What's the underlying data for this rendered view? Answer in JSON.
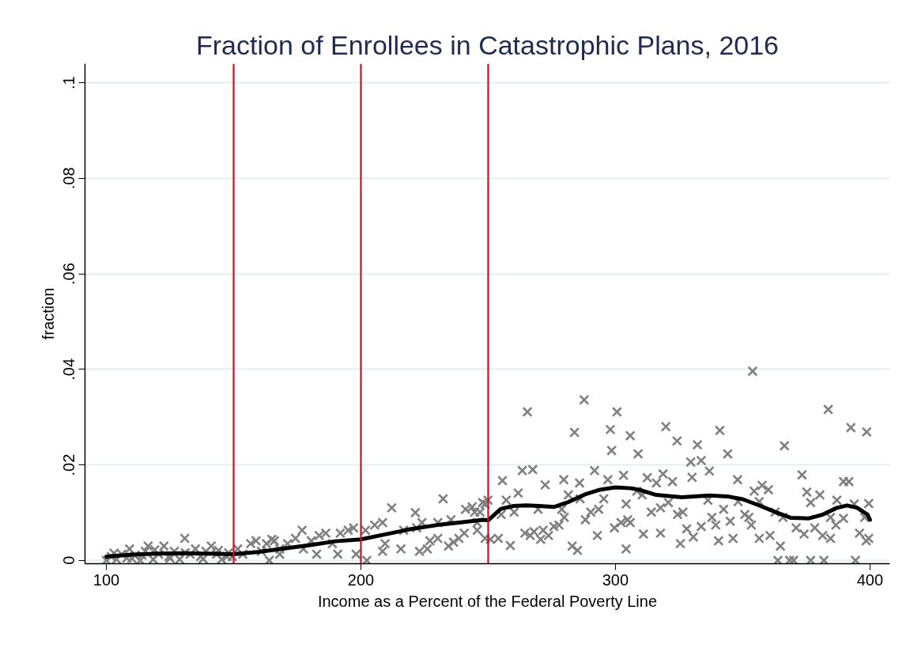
{
  "chart_data": {
    "type": "scatter",
    "title": "Fraction of Enrollees in Catastrophic Plans, 2016",
    "xlabel": "Income as a Percent of the Federal Poverty Line",
    "ylabel": "fraction",
    "series": [
      {
        "color": "#808080",
        "marker": "cross",
        "x": [
          100,
          101.9,
          104,
          106,
          108.1,
          109.1,
          111.2,
          113.3,
          115.3,
          116.4,
          118.4,
          120.5,
          122.6,
          124.6,
          126.7,
          128.8,
          130.8,
          132.9,
          135,
          137,
          139.1,
          141.2,
          143.3,
          145.3,
          147.4,
          149.5,
          151.6,
          153.6,
          156.7,
          158.8,
          160.9,
          162.9,
          164,
          166,
          168.1,
          103,
          110,
          114,
          119,
          125,
          131,
          138,
          144,
          148,
          165,
          168.1,
          171.2,
          174.3,
          176.9,
          177.4,
          180.5,
          183.6,
          182.6,
          186.2,
          188.8,
          190.9,
          191.9,
          195,
          197.1,
          198.1,
          201.8,
          202.3,
          205.4,
          208.5,
          208.5,
          209.5,
          212.1,
          215.7,
          216.8,
          221.4,
          221.9,
          224,
          223,
          226.1,
          230.2,
          227.1,
          230.2,
          232.3,
          234.4,
          236.4,
          235.4,
          238.5,
          240.6,
          241.1,
          243.7,
          245.7,
          247.8,
          249.9,
          245.7,
          248.8,
          244.7,
          265.4,
          287.7,
          300.6,
          283.9,
          298,
          298.5,
          305.8,
          263.4,
          267.5,
          255.6,
          272.4,
          279.7,
          285.9,
          291.8,
          297,
          303.2,
          261.8,
          257.1,
          248.8,
          281.5,
          286.1,
          295.4,
          304.2,
          269.6,
          260.2,
          255.1,
          246.8,
          278.9,
          290.3,
          293.4,
          279.9,
          288.2,
          299.6,
          304.8,
          264.4,
          268,
          271.6,
          275.8,
          277.8,
          270.6,
          273.7,
          266.5,
          292.9,
          250.9,
          254,
          258.7,
          283,
          285.1,
          304.2,
          353.9,
          319.8,
          341,
          324.2,
          332.2,
          308.9,
          344.1,
          329.6,
          333.7,
          336.9,
          312.5,
          318.7,
          322.4,
          316.1,
          330.1,
          348,
          354.5,
          308.4,
          310.5,
          314.1,
          317.7,
          320.8,
          326.5,
          336.3,
          342.5,
          348.2,
          350.8,
          352.4,
          302.2,
          305.8,
          324.4,
          328,
          333.7,
          337.9,
          339.4,
          345.1,
          311,
          317.7,
          330.6,
          325.5,
          340.5,
          346.2,
          353.4,
          383.6,
          392.5,
          398.7,
          366.4,
          373.3,
          389.6,
          391.7,
          357.6,
          360.1,
          375.2,
          380.3,
          376.7,
          387,
          399.5,
          356.5,
          362.7,
          365.8,
          356.5,
          360.7,
          364.8,
          371,
          374.1,
          378.3,
          381.4,
          384.5,
          386.6,
          389.6,
          384.5,
          395.9,
          398.5,
          399.5,
          397.9,
          393.8,
          363.8,
          368.4,
          370,
          376.7,
          381.9,
          394.3
        ],
        "values": [
          0,
          0.0008,
          0.0002,
          0.0013,
          0.0005,
          0.0024,
          0.001,
          0,
          0.0019,
          0.003,
          0.0002,
          0.0013,
          0.003,
          0.0008,
          0.0019,
          0.0002,
          0.0046,
          0.0013,
          0.0024,
          0.0008,
          0.0019,
          0.003,
          0.0013,
          0.0002,
          0.0008,
          0.0008,
          0.0024,
          0.0013,
          0.0035,
          0.0041,
          0.0019,
          0.0035,
          0,
          0.0041,
          0.0024,
          0.0015,
          0.0004,
          0.0011,
          0.0022,
          0.0004,
          0.0016,
          0.0003,
          0.0021,
          0.0016,
          0.0044,
          0.0013,
          0.0035,
          0.0046,
          0.0063,
          0.0024,
          0.0041,
          0.0052,
          0.0013,
          0.0057,
          0.0035,
          0.0013,
          0.0057,
          0.0063,
          0.0068,
          0.0013,
          0.0063,
          0,
          0.0074,
          0.0079,
          0.0019,
          0.0035,
          0.011,
          0.0024,
          0.0063,
          0.01,
          0.0068,
          0.0079,
          0.0019,
          0.0024,
          0.0079,
          0.0041,
          0.0046,
          0.0129,
          0.003,
          0.0038,
          0.0085,
          0.0046,
          0.0057,
          0.0107,
          0.0112,
          0.0079,
          0.0121,
          0.0126,
          0.0063,
          0.0046,
          0.0101,
          0.0311,
          0.0336,
          0.0311,
          0.0268,
          0.0274,
          0.023,
          0.0261,
          0.0188,
          0.019,
          0.0167,
          0.0158,
          0.0169,
          0.0162,
          0.0188,
          0.0169,
          0.0178,
          0.0141,
          0.0126,
          0.0118,
          0.0137,
          0.0129,
          0.0129,
          0.0118,
          0.0107,
          0.0101,
          0.0096,
          0.0101,
          0.0107,
          0.0101,
          0.0107,
          0.009,
          0.0085,
          0.0068,
          0.0085,
          0.0057,
          0.006,
          0.0063,
          0.0071,
          0.0074,
          0.0044,
          0.0052,
          0.0052,
          0.0052,
          0.0044,
          0.0046,
          0.0031,
          0.003,
          0.0021,
          0.0024,
          0.0396,
          0.028,
          0.0272,
          0.025,
          0.0242,
          0.0223,
          0.0223,
          0.0206,
          0.0209,
          0.0187,
          0.0173,
          0.0181,
          0.0165,
          0.0162,
          0.0174,
          0.0169,
          0.0145,
          0.0145,
          0.0137,
          0.0101,
          0.011,
          0.0121,
          0.0101,
          0.0126,
          0.0107,
          0.0123,
          0.0096,
          0.009,
          0.0079,
          0.0079,
          0.0096,
          0.0066,
          0.0071,
          0.009,
          0.0074,
          0.0082,
          0.0055,
          0.0057,
          0.0049,
          0.0035,
          0.0041,
          0.0046,
          0.0074,
          0.0316,
          0.0278,
          0.0269,
          0.024,
          0.0179,
          0.0165,
          0.0165,
          0.0157,
          0.0148,
          0.0143,
          0.0137,
          0.0121,
          0.0126,
          0.0119,
          0.0123,
          0.0101,
          0.009,
          0.0046,
          0.0052,
          0.003,
          0.0068,
          0.0055,
          0.0068,
          0.0052,
          0.0046,
          0.0074,
          0.0088,
          0.009,
          0.0057,
          0.0041,
          0.0046,
          0.009,
          0.0118,
          0,
          0,
          0,
          0,
          0,
          0
        ]
      },
      {
        "type": "line",
        "color": "#000000",
        "marker": "none",
        "x": [
          100,
          110,
          120,
          130,
          140,
          150,
          160,
          170,
          180,
          190,
          200,
          210,
          220,
          230,
          240,
          248,
          250,
          255,
          260,
          265,
          270,
          276,
          281,
          288,
          294,
          300,
          306,
          310,
          316,
          326,
          337,
          344,
          350,
          356,
          363,
          369,
          376,
          381,
          387,
          391,
          395,
          399,
          400
        ],
        "values": [
          0.0008,
          0.0012,
          0.0014,
          0.0015,
          0.0014,
          0.0013,
          0.0018,
          0.0025,
          0.0032,
          0.004,
          0.0044,
          0.0055,
          0.0066,
          0.0074,
          0.008,
          0.0085,
          0.0084,
          0.0108,
          0.0114,
          0.0115,
          0.0114,
          0.0112,
          0.0121,
          0.0138,
          0.0148,
          0.0153,
          0.0151,
          0.0147,
          0.0137,
          0.0132,
          0.0136,
          0.0134,
          0.0128,
          0.0116,
          0.0101,
          0.0089,
          0.0088,
          0.0095,
          0.011,
          0.0115,
          0.011,
          0.0096,
          0.0085
        ]
      }
    ],
    "xlim": [
      91.6,
      407.8
    ],
    "ylim": [
      -0.0007,
      0.104
    ],
    "xticks": [
      100,
      200,
      300,
      400
    ],
    "yticks": [
      0,
      {
        "value": 0.02,
        "label": ".02"
      },
      {
        "value": 0.04,
        "label": ".04"
      },
      {
        "value": 0.06,
        "label": ".06"
      },
      {
        "value": 0.08,
        "label": ".08"
      },
      {
        "value": 0.1,
        "label": ".1"
      }
    ],
    "ref_lines": [
      {
        "axis": "x",
        "value": 150,
        "color": "#c8102e"
      },
      {
        "axis": "x",
        "value": 200,
        "color": "#c8102e"
      },
      {
        "axis": "x",
        "value": 250,
        "color": "#c8102e"
      }
    ],
    "grid": "y"
  }
}
